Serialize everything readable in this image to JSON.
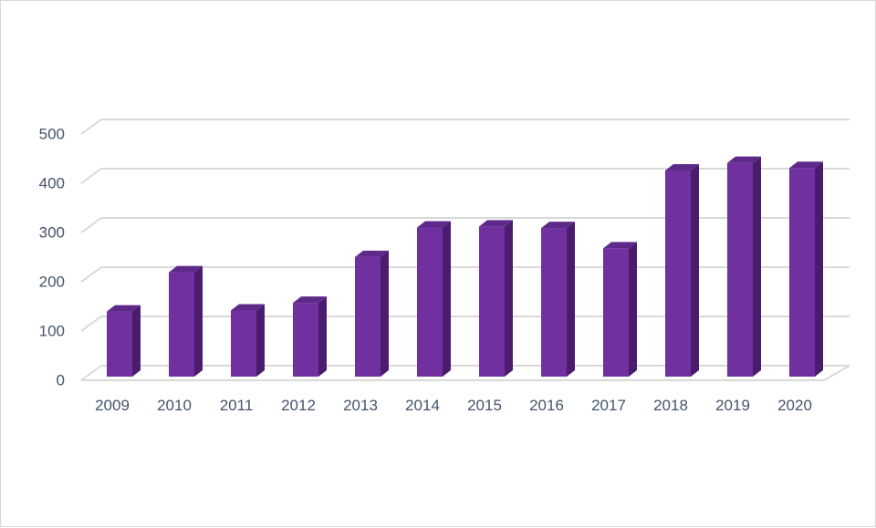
{
  "chart_data": {
    "type": "bar",
    "categories": [
      "2009",
      "2010",
      "2011",
      "2012",
      "2013",
      "2014",
      "2015",
      "2016",
      "2017",
      "2018",
      "2019",
      "2020"
    ],
    "values": [
      128,
      205,
      130,
      145,
      235,
      293,
      295,
      292,
      252,
      405,
      420,
      410
    ],
    "ylim": [
      0,
      500
    ],
    "yticks": [
      "0",
      "100",
      "200",
      "300",
      "400",
      "500"
    ],
    "grid": true,
    "legend": "none",
    "colors": {
      "bar_front": "#7030a0",
      "bar_side": "#4b1c6e",
      "bar_top": "#5e2a8a",
      "grid": "#d9d9d9",
      "tick_text": "#44546a"
    }
  }
}
